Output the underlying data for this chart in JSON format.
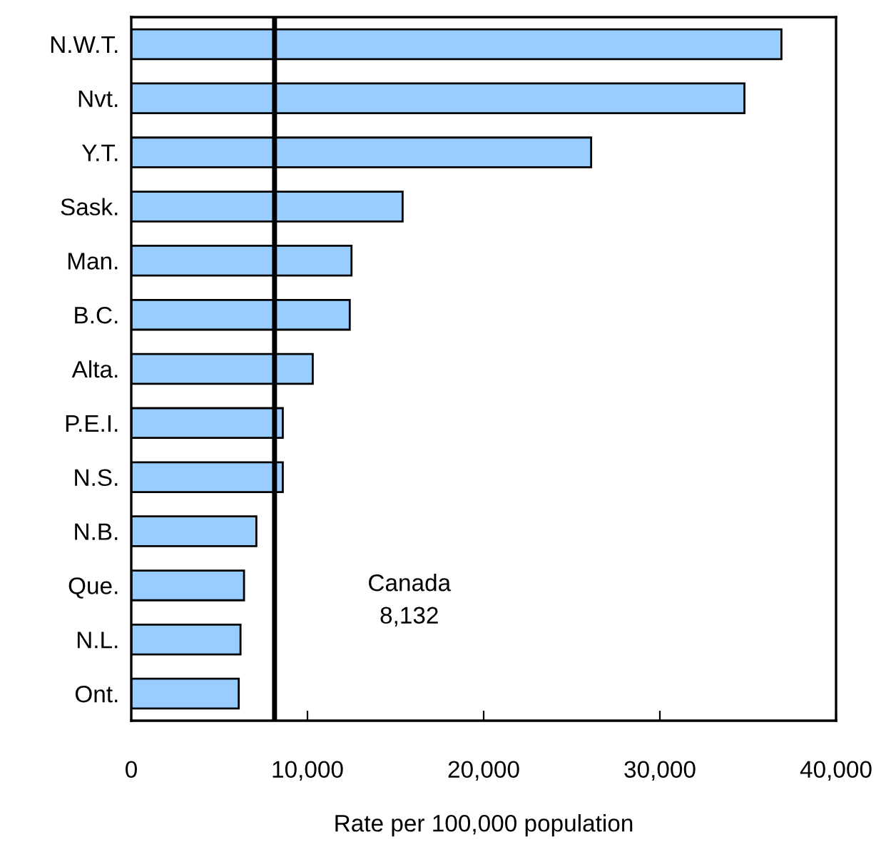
{
  "chart_data": {
    "type": "bar",
    "orientation": "horizontal",
    "xlabel": "Rate per 100,000 population",
    "categories": [
      "N.W.T.",
      "Nvt.",
      "Y.T.",
      "Sask.",
      "Man.",
      "B.C.",
      "Alta.",
      "P.E.I.",
      "N.S.",
      "N.B.",
      "Que.",
      "N.L.",
      "Ont."
    ],
    "values": [
      36900,
      34800,
      26100,
      15400,
      12500,
      12400,
      10300,
      8600,
      8600,
      7100,
      6400,
      6200,
      6100
    ],
    "color": "#99ccff",
    "xlim": [
      0,
      40000
    ],
    "xticks": [
      {
        "value": 0,
        "label": "0"
      },
      {
        "value": 10000,
        "label": "10,000"
      },
      {
        "value": 20000,
        "label": "20,000"
      },
      {
        "value": 30000,
        "label": "30,000"
      },
      {
        "value": 40000,
        "label": "40,000"
      }
    ],
    "ref_lines": [
      {
        "axis": "x",
        "value": 8132,
        "label": "Canada\n8,132",
        "color": "#000000",
        "line_style": "solid"
      }
    ],
    "grid": false,
    "legend": false
  }
}
